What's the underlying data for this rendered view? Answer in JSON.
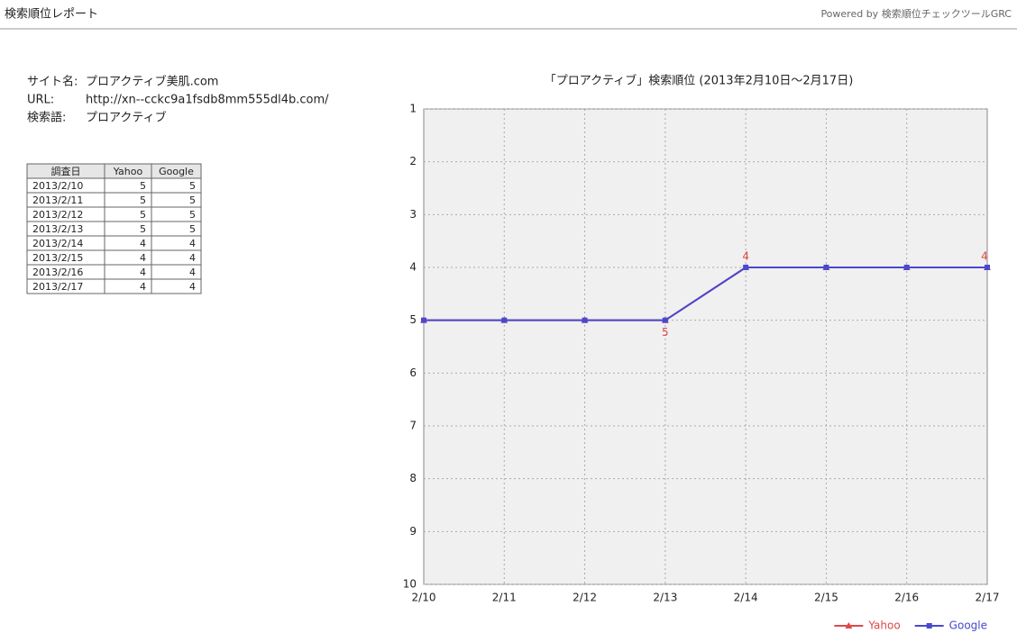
{
  "header": {
    "title": "検索順位レポート",
    "powered": "Powered by 検索順位チェックツールGRC"
  },
  "site": {
    "name_label": "サイト名:",
    "name": "プロアクティブ美肌.com",
    "url_label": "URL:",
    "url": "http://xn--cckc9a1fsdb8mm555dl4b.com/",
    "keyword_label": "検索語:",
    "keyword": "プロアクティブ"
  },
  "table": {
    "headers": [
      "調査日",
      "Yahoo",
      "Google"
    ],
    "rows": [
      [
        "2013/2/10",
        5,
        5
      ],
      [
        "2013/2/11",
        5,
        5
      ],
      [
        "2013/2/12",
        5,
        5
      ],
      [
        "2013/2/13",
        5,
        5
      ],
      [
        "2013/2/14",
        4,
        4
      ],
      [
        "2013/2/15",
        4,
        4
      ],
      [
        "2013/2/16",
        4,
        4
      ],
      [
        "2013/2/17",
        4,
        4
      ]
    ]
  },
  "chart_data": {
    "type": "line",
    "title": "「プロアクティブ」検索順位 (2013年2月10日〜2月17日)",
    "categories": [
      "2/10",
      "2/11",
      "2/12",
      "2/13",
      "2/14",
      "2/15",
      "2/16",
      "2/17"
    ],
    "series": [
      {
        "name": "Yahoo",
        "color": "#e04848",
        "marker": "triangle",
        "values": [
          5,
          5,
          5,
          5,
          4,
          4,
          4,
          4
        ],
        "value_labels": [
          null,
          null,
          null,
          "5",
          "4",
          null,
          null,
          "4"
        ]
      },
      {
        "name": "Google",
        "color": "#4848d0",
        "marker": "square",
        "values": [
          5,
          5,
          5,
          5,
          4,
          4,
          4,
          4
        ]
      }
    ],
    "ylim": [
      10,
      1
    ],
    "yticks": [
      1,
      2,
      3,
      4,
      5,
      6,
      7,
      8,
      9,
      10
    ],
    "grid": true,
    "legend": "bottom-right"
  }
}
